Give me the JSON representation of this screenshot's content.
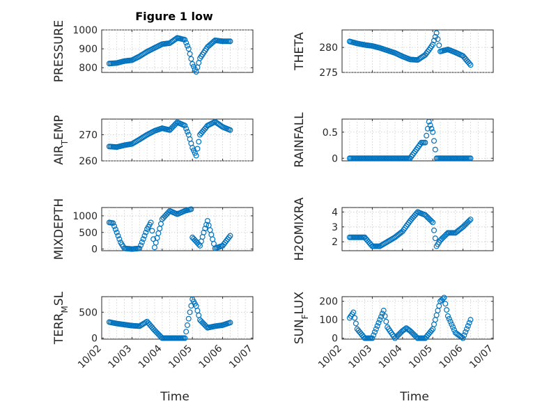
{
  "title": "Figure 1 low",
  "marker_color": "#0072BD",
  "chart_data": [
    {
      "type": "scatter",
      "ylabel": "PRESSURE",
      "ylim": [
        775,
        1000
      ],
      "yticks": [
        "800",
        "900",
        "1000"
      ],
      "yticks_values": [
        800,
        900,
        1000
      ],
      "x": [
        "10/02 06:00",
        "10/02 12:00",
        "10/02 18:00",
        "10/03 00:00",
        "10/03 06:00",
        "10/03 12:00",
        "10/03 18:00",
        "10/04 00:00",
        "10/04 06:00",
        "10/04 12:00",
        "10/04 18:00",
        "10/04 21:00",
        "10/05 00:00",
        "10/05 03:00",
        "10/05 06:00",
        "10/05 12:00",
        "10/05 18:00",
        "10/06 00:00",
        "10/06 06:00"
      ],
      "y": [
        822,
        825,
        835,
        840,
        860,
        885,
        905,
        925,
        930,
        958,
        948,
        900,
        820,
        778,
        850,
        910,
        945,
        940,
        940
      ]
    },
    {
      "type": "scatter",
      "ylabel": "THETA",
      "ylim": [
        275,
        283.5
      ],
      "yticks": [
        "275",
        "280"
      ],
      "yticks_values": [
        275,
        280
      ],
      "x": [
        "10/02 06:00",
        "10/02 12:00",
        "10/02 18:00",
        "10/03 00:00",
        "10/03 06:00",
        "10/03 12:00",
        "10/03 18:00",
        "10/04 00:00",
        "10/04 06:00",
        "10/04 12:00",
        "10/04 18:00",
        "10/04 21:00",
        "10/05 00:00",
        "10/05 03:00",
        "10/05 06:00",
        "10/05 12:00",
        "10/05 18:00",
        "10/06 00:00",
        "10/06 06:00"
      ],
      "y": [
        281.2,
        280.8,
        280.5,
        280.3,
        279.9,
        279.4,
        278.9,
        278.2,
        277.6,
        277.5,
        278.5,
        279.5,
        280.6,
        282.9,
        279.2,
        279.6,
        279.0,
        278.3,
        276.5
      ]
    },
    {
      "type": "scatter",
      "ylabel": "AIR_TEMP",
      "ylim": [
        260,
        276
      ],
      "yticks": [
        "260",
        "270"
      ],
      "yticks_values": [
        260,
        270
      ],
      "x": [
        "10/02 06:00",
        "10/02 12:00",
        "10/02 18:00",
        "10/03 00:00",
        "10/03 06:00",
        "10/03 12:00",
        "10/03 18:00",
        "10/04 00:00",
        "10/04 06:00",
        "10/04 12:00",
        "10/04 18:00",
        "10/04 21:00",
        "10/05 00:00",
        "10/05 03:00",
        "10/05 06:00",
        "10/05 12:00",
        "10/05 18:00",
        "10/06 00:00",
        "10/06 06:00"
      ],
      "y": [
        265.5,
        265.3,
        266.0,
        266.5,
        268.2,
        270.0,
        271.5,
        272.5,
        271.8,
        274.8,
        273.5,
        270.0,
        265.0,
        262.0,
        270.0,
        273.5,
        275.0,
        273.0,
        271.8
      ]
    },
    {
      "type": "scatter",
      "ylabel": "RAINFALL",
      "ylim": [
        -0.05,
        0.75
      ],
      "yticks": [
        "0",
        "0.5"
      ],
      "yticks_values": [
        0,
        0.5
      ],
      "x": [
        "10/02 06:00",
        "10/02 12:00",
        "10/02 18:00",
        "10/03 00:00",
        "10/03 06:00",
        "10/03 12:00",
        "10/03 18:00",
        "10/04 00:00",
        "10/04 06:00",
        "10/04 12:00",
        "10/04 15:00",
        "10/04 18:00",
        "10/04 21:00",
        "10/05 00:00",
        "10/05 03:00",
        "10/05 06:00",
        "10/05 12:00",
        "10/05 18:00",
        "10/06 00:00",
        "10/06 06:00"
      ],
      "y": [
        0,
        0,
        0,
        0,
        0,
        0,
        0,
        0,
        0,
        0.2,
        0.3,
        0.3,
        0.7,
        0.5,
        0,
        0,
        0,
        0,
        0,
        0
      ]
    },
    {
      "type": "scatter",
      "ylabel": "MIXDEPTH",
      "ylim": [
        -50,
        1250
      ],
      "yticks": [
        "0",
        "500",
        "1000"
      ],
      "yticks_values": [
        0,
        500,
        1000
      ],
      "x": [
        "10/02 06:00",
        "10/02 09:00",
        "10/02 12:00",
        "10/02 15:00",
        "10/02 18:00",
        "10/03 00:00",
        "10/03 06:00",
        "10/03 09:00",
        "10/03 12:00",
        "10/03 15:00",
        "10/03 18:00",
        "10/04 00:00",
        "10/04 06:00",
        "10/04 12:00",
        "10/04 18:00",
        "10/04 23:00",
        "10/05 00:00",
        "10/05 06:00",
        "10/05 09:00",
        "10/05 12:00",
        "10/05 18:00",
        "10/06 00:00",
        "10/06 06:00"
      ],
      "y": [
        800,
        780,
        500,
        200,
        20,
        0,
        20,
        300,
        600,
        800,
        50,
        900,
        1150,
        1050,
        1150,
        1200,
        350,
        100,
        500,
        850,
        20,
        100,
        400
      ]
    },
    {
      "type": "scatter",
      "ylabel": "H2OMIXRA",
      "ylim": [
        1.4,
        4.3
      ],
      "yticks": [
        "2",
        "3",
        "4"
      ],
      "yticks_values": [
        2,
        3,
        4
      ],
      "x": [
        "10/02 06:00",
        "10/02 12:00",
        "10/02 18:00",
        "10/03 00:00",
        "10/03 06:00",
        "10/03 12:00",
        "10/03 18:00",
        "10/04 00:00",
        "10/04 06:00",
        "10/04 12:00",
        "10/04 18:00",
        "10/05 00:00",
        "10/05 03:00",
        "10/05 06:00",
        "10/05 12:00",
        "10/05 18:00",
        "10/06 00:00",
        "10/06 06:00"
      ],
      "y": [
        2.3,
        2.3,
        2.3,
        1.7,
        1.7,
        2.0,
        2.3,
        2.7,
        3.4,
        4.0,
        3.8,
        3.3,
        1.7,
        2.1,
        2.6,
        2.6,
        3.0,
        3.5
      ]
    },
    {
      "type": "scatter",
      "ylabel": "TERR_MSL",
      "ylim": [
        -20,
        800
      ],
      "yticks": [
        "0",
        "500"
      ],
      "yticks_values": [
        0,
        500
      ],
      "x": [
        "10/02 06:00",
        "10/02 12:00",
        "10/02 18:00",
        "10/03 00:00",
        "10/03 06:00",
        "10/03 12:00",
        "10/03 18:00",
        "10/04 00:00",
        "10/04 06:00",
        "10/04 12:00",
        "10/04 18:00",
        "10/05 00:00",
        "10/05 03:00",
        "10/05 06:00",
        "10/05 12:00",
        "10/05 18:00",
        "10/06 00:00",
        "10/06 06:00"
      ],
      "y": [
        310,
        280,
        260,
        240,
        230,
        320,
        150,
        0,
        0,
        0,
        0,
        750,
        620,
        350,
        200,
        230,
        250,
        300
      ]
    },
    {
      "type": "scatter",
      "ylabel": "SUN_FLUX",
      "ylim": [
        -5,
        225
      ],
      "yticks": [
        "0",
        "100",
        "200"
      ],
      "yticks_values": [
        0,
        100,
        200
      ],
      "x": [
        "10/02 06:00",
        "10/02 09:00",
        "10/02 12:00",
        "10/02 18:00",
        "10/03 00:00",
        "10/03 06:00",
        "10/03 09:00",
        "10/03 12:00",
        "10/03 18:00",
        "10/04 00:00",
        "10/04 03:00",
        "10/04 06:00",
        "10/04 09:00",
        "10/04 12:00",
        "10/04 18:00",
        "10/05 00:00",
        "10/05 06:00",
        "10/05 09:00",
        "10/05 12:00",
        "10/05 18:00",
        "10/06 00:00",
        "10/06 06:00"
      ],
      "y": [
        110,
        140,
        50,
        0,
        0,
        100,
        150,
        60,
        0,
        40,
        55,
        40,
        20,
        0,
        0,
        50,
        200,
        220,
        120,
        30,
        0,
        100
      ]
    }
  ],
  "xaxis": {
    "ticks": [
      "10/02",
      "10/03",
      "10/04",
      "10/05",
      "10/06",
      "10/07"
    ],
    "ticks_values": [
      "10/02",
      "10/03",
      "10/04",
      "10/05",
      "10/06",
      "10/07"
    ],
    "xlim": [
      "10/02 00:00",
      "10/07 00:00"
    ],
    "label": "Time"
  }
}
